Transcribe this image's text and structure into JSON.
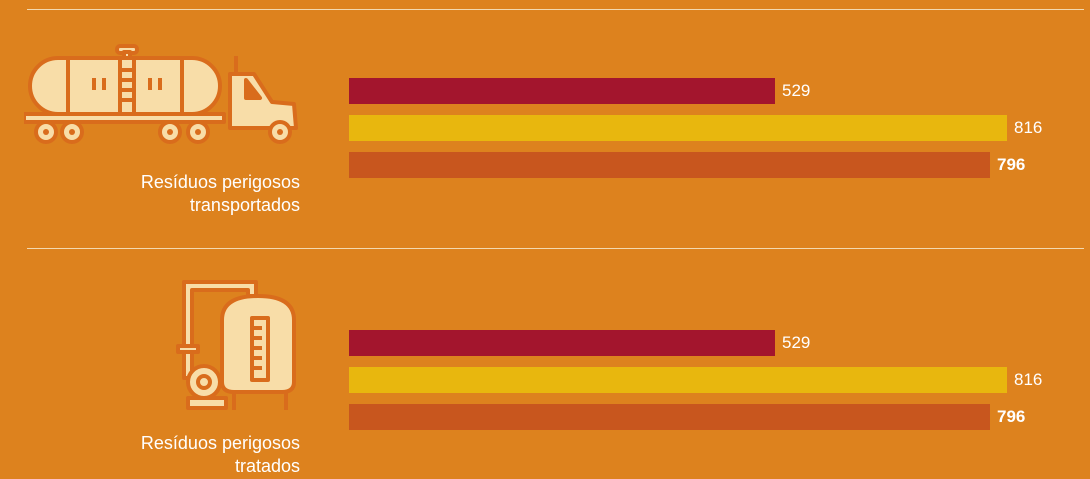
{
  "colors": {
    "background": "#dd821e",
    "series": [
      "#a3152d",
      "#e8b70e",
      "#c8561e"
    ],
    "icon_stroke": "#d96c1c",
    "icon_fill": "#f8dda8"
  },
  "chart_data": [
    {
      "type": "bar",
      "orientation": "horizontal",
      "category_label": [
        "Resíduos perigosos",
        "transportados"
      ],
      "icon": "tanker-truck-icon",
      "values": [
        529,
        816,
        796
      ],
      "value_labels": [
        "529",
        "816",
        "796"
      ],
      "xlim": [
        0,
        850
      ]
    },
    {
      "type": "bar",
      "orientation": "horizontal",
      "category_label": [
        "Resíduos perigosos",
        "tratados"
      ],
      "icon": "treatment-tank-icon",
      "values": [
        529,
        816,
        796
      ],
      "value_labels": [
        "529",
        "816",
        "796"
      ],
      "xlim": [
        0,
        850
      ]
    }
  ]
}
